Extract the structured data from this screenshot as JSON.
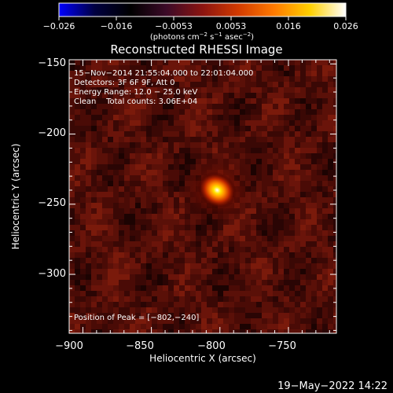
{
  "colorbar": {
    "tick_labels": [
      "−0.026",
      "−0.016",
      "−0.0053",
      "0.0053",
      "0.016",
      "0.026"
    ],
    "unit_main": "(photons cm",
    "unit_sup1": "−2",
    "unit_mid": " s",
    "unit_sup2": "−1",
    "unit_end": " asec",
    "unit_sup3": "−2",
    "unit_close": ")",
    "stops": [
      "#0000ff",
      "#000040",
      "#000000",
      "#3c0a28",
      "#8b1410",
      "#d23a00",
      "#ff7a00",
      "#ffd000",
      "#ffffff"
    ]
  },
  "chart_data": {
    "type": "heatmap",
    "title": "Reconstructed RHESSI Image",
    "xlabel": "Heliocentric X (arcsec)",
    "ylabel": "Heliocentric Y (arcsec)",
    "xlim": [
      -910,
      -715
    ],
    "ylim": [
      -342,
      -147
    ],
    "x_ticks": [
      -900,
      -850,
      -800,
      -750
    ],
    "y_ticks": [
      -150,
      -200,
      -250,
      -300
    ],
    "x_tick_labels": [
      "−900",
      "−850",
      "−800",
      "−750"
    ],
    "y_tick_labels": [
      "−150",
      "−200",
      "−250",
      "−300"
    ],
    "info_lines": [
      "15−Nov−2014 21:55:04.000 to 22:01:04.000",
      "Detectors: 3F 6F 9F, Att 0",
      "Energy Range: 12.0 − 25.0 keV",
      "Clean    Total counts: 3.06E+04"
    ],
    "peak_text": "Position of Peak = [−802,−240]",
    "peak": [
      -802,
      -240
    ],
    "total_counts": 30600,
    "energy_range_keV": [
      12.0,
      25.0
    ]
  },
  "footer": {
    "date": "19−May−2022 14:22"
  }
}
